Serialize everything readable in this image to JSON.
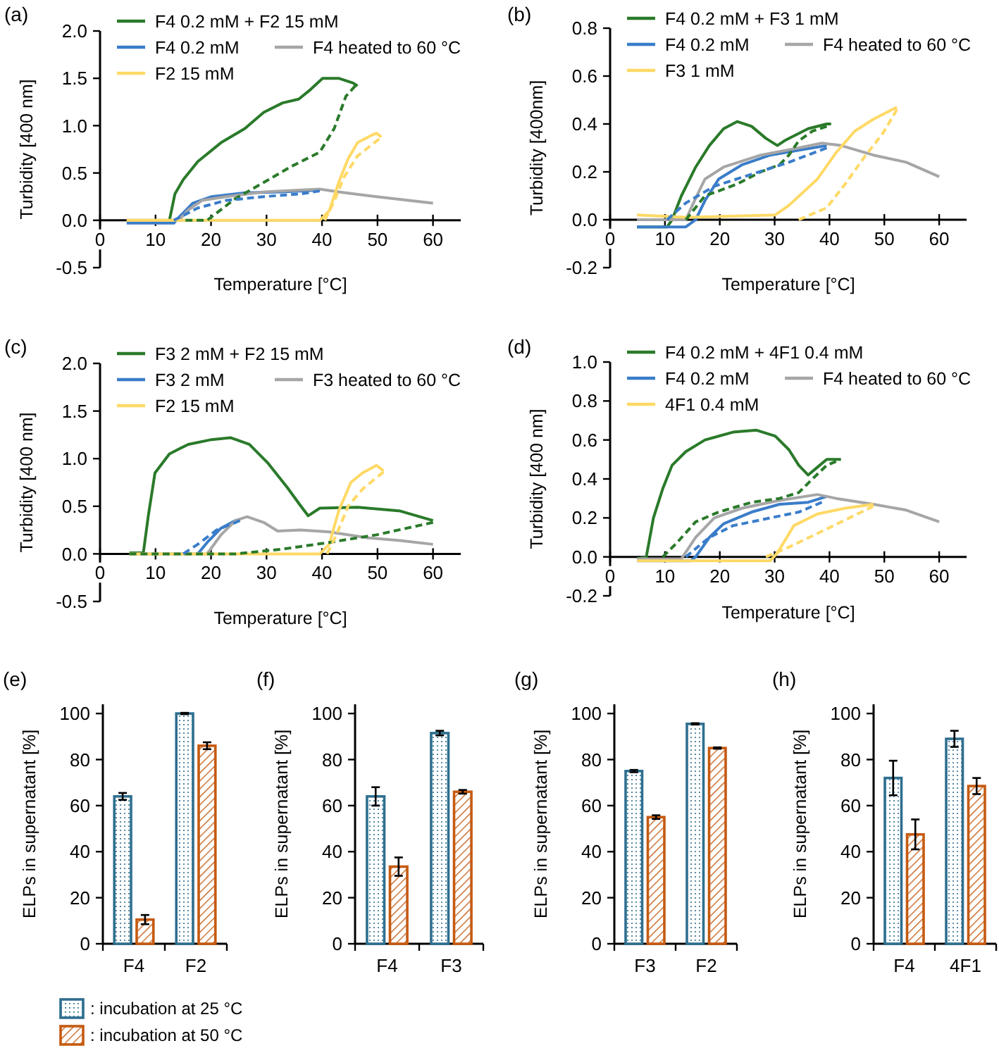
{
  "chart_data": [
    {
      "type": "line",
      "title": "(a)",
      "xlabel": "Temperature [°C]",
      "ylabel": "Turbidity [400 nm]",
      "xlim": [
        0,
        65
      ],
      "xticks": [
        0,
        10,
        20,
        30,
        40,
        50,
        60
      ],
      "ylim": [
        -0.5,
        2.0
      ],
      "yticks": [
        -0.5,
        {
          "value": 0,
          "label": "0.0"
        },
        0.5,
        {
          "value": 1,
          "label": "1.0"
        },
        1.5,
        {
          "value": 2,
          "label": "2.0"
        }
      ],
      "legend": "top",
      "series": [
        {
          "name": "F4 0.2 mM + F2 15 mM",
          "color": "#2a7a2a",
          "line_style": "solid",
          "x": [
            12.5,
            13.5,
            15,
            17.6,
            21.8,
            26.1,
            29.5,
            32.9,
            35.8,
            37.9,
            40.1,
            43,
            45.6,
            46.4
          ],
          "values": [
            0,
            0.28,
            0.43,
            0.62,
            0.82,
            0.97,
            1.14,
            1.24,
            1.28,
            1.38,
            1.5,
            1.5,
            1.45,
            1.42
          ]
        },
        {
          "color": "#2a7a2a",
          "line_style": "dashed",
          "x": [
            15.4,
            19.3,
            24.4,
            29.5,
            34.5,
            39.6,
            42.2,
            44.3,
            46
          ],
          "values": [
            0,
            0,
            0.23,
            0.4,
            0.57,
            0.72,
            0.97,
            1.31,
            1.42
          ]
        },
        {
          "name": "F4 0.2 mM",
          "color": "#3a7dc9",
          "line_style": "solid",
          "x": [
            4.8,
            13.3,
            14.2,
            16.7,
            20.1,
            26.1,
            32.9,
            39.6
          ],
          "values": [
            -0.03,
            -0.03,
            0.03,
            0.18,
            0.25,
            0.29,
            0.3,
            0.32
          ]
        },
        {
          "color": "#3a7dc9",
          "line_style": "dashed",
          "x": [
            13.3,
            17.6,
            22.7,
            29.5,
            36.2,
            39.6
          ],
          "values": [
            0,
            0.13,
            0.21,
            0.25,
            0.28,
            0.31
          ]
        },
        {
          "name": "F4 heated to 60 °C",
          "color": "#a6a6a6",
          "line_style": "solid",
          "x": [
            4.8,
            14.2,
            15.9,
            18.4,
            22.7,
            29.5,
            39.6,
            43,
            49.8,
            60
          ],
          "values": [
            0,
            0,
            0.11,
            0.21,
            0.25,
            0.3,
            0.33,
            0.3,
            0.25,
            0.18
          ]
        },
        {
          "name": "F2 15 mM",
          "color": "#ffd966",
          "line_style": "solid",
          "x": [
            4.8,
            39.6,
            41.3,
            43,
            44.7,
            46.4,
            49,
            49.8,
            50.7
          ],
          "values": [
            0,
            0,
            0.1,
            0.4,
            0.65,
            0.82,
            0.9,
            0.92,
            0.88
          ]
        },
        {
          "color": "#ffd966",
          "line_style": "dashed",
          "x": [
            40.5,
            42.2,
            43.9,
            46.4,
            49,
            50.3
          ],
          "values": [
            0,
            0.2,
            0.45,
            0.68,
            0.8,
            0.86
          ]
        }
      ]
    },
    {
      "type": "line",
      "title": "(b)",
      "xlabel": "Temperature [°C]",
      "ylabel": "Turbidity [400nm]",
      "xlim": [
        0,
        65
      ],
      "xticks": [
        0,
        10,
        20,
        30,
        40,
        50,
        60
      ],
      "ylim": [
        -0.2,
        0.8
      ],
      "yticks": [
        -0.2,
        {
          "value": 0,
          "label": "0.0"
        },
        0.2,
        0.4,
        0.6,
        0.8
      ],
      "legend": "top",
      "series": [
        {
          "name": "F4 0.2 mM + F3 1 mM",
          "color": "#2a7a2a",
          "line_style": "solid",
          "x": [
            4.9,
            10.4,
            11.3,
            13,
            15.6,
            18.1,
            20.7,
            23.2,
            25.8,
            28.4,
            30.5,
            31.8,
            33.5,
            36.1,
            39.5,
            40.3
          ],
          "values": [
            -0.03,
            -0.03,
            0,
            0.1,
            0.22,
            0.31,
            0.38,
            0.41,
            0.39,
            0.34,
            0.31,
            0.33,
            0.35,
            0.38,
            0.4,
            0.4
          ]
        },
        {
          "color": "#2a7a2a",
          "line_style": "dashed",
          "x": [
            13.8,
            17.3,
            19.8,
            23.2,
            27.5,
            30.9,
            32.6,
            34.4,
            36.9,
            39.5
          ],
          "values": [
            0,
            0.1,
            0.12,
            0.15,
            0.2,
            0.23,
            0.27,
            0.33,
            0.37,
            0.39
          ]
        },
        {
          "name": "F4 0.2 mM",
          "color": "#3a7dc9",
          "line_style": "solid",
          "x": [
            4.9,
            13.8,
            15.6,
            17.3,
            19.8,
            24.1,
            29.2,
            34.4,
            39.5
          ],
          "values": [
            -0.03,
            -0.03,
            0,
            0.08,
            0.17,
            0.23,
            0.27,
            0.29,
            0.31
          ]
        },
        {
          "color": "#3a7dc9",
          "line_style": "dashed",
          "x": [
            10.4,
            13.8,
            19,
            25.8,
            32.6,
            39.5
          ],
          "values": [
            0,
            0.07,
            0.14,
            0.19,
            0.24,
            0.3
          ]
        },
        {
          "name": "F4 heated to 60 °C",
          "color": "#a6a6a6",
          "line_style": "solid",
          "x": [
            4.9,
            13.8,
            15.6,
            17.3,
            20.7,
            27.5,
            34.4,
            38.6,
            42.1,
            48,
            54,
            60
          ],
          "values": [
            0,
            0,
            0.09,
            0.17,
            0.22,
            0.27,
            0.3,
            0.32,
            0.31,
            0.27,
            0.24,
            0.18
          ]
        },
        {
          "name": "F3 1 mM",
          "color": "#ffd966",
          "line_style": "solid",
          "x": [
            4.9,
            13.8,
            30.1,
            32.6,
            37.8,
            41.2,
            44.6,
            48,
            52.3
          ],
          "values": [
            0.02,
            0.01,
            0.02,
            0.06,
            0.17,
            0.28,
            0.37,
            0.42,
            0.47
          ]
        },
        {
          "color": "#ffd966",
          "line_style": "dashed",
          "x": [
            34.4,
            39.5,
            42.9,
            46.3,
            49.7,
            52.3
          ],
          "values": [
            0,
            0.05,
            0.15,
            0.26,
            0.36,
            0.46
          ]
        }
      ]
    },
    {
      "type": "line",
      "title": "(c)",
      "xlabel": "Temperature [°C]",
      "ylabel": "Turbidity [400 nm]",
      "xlim": [
        0,
        65
      ],
      "xticks": [
        0,
        10,
        20,
        30,
        40,
        50,
        60
      ],
      "ylim": [
        -0.5,
        2.0
      ],
      "yticks": [
        -0.5,
        {
          "value": 0,
          "label": "0.0"
        },
        0.5,
        {
          "value": 1,
          "label": "1.0"
        },
        1.5,
        {
          "value": 2,
          "label": "2.0"
        }
      ],
      "legend": "top",
      "series": [
        {
          "name": "F3 2 mM + F2 15 mM",
          "color": "#2a7a2a",
          "line_style": "solid",
          "x": [
            5.3,
            7.8,
            8.7,
            9.9,
            12.5,
            15.9,
            20.1,
            23.5,
            26.9,
            30.3,
            33.7,
            36.2,
            37.5,
            39.6,
            46.4,
            54.1,
            60
          ],
          "values": [
            0.01,
            0.01,
            0.4,
            0.85,
            1.05,
            1.15,
            1.2,
            1.22,
            1.15,
            0.95,
            0.7,
            0.5,
            0.4,
            0.48,
            0.49,
            0.45,
            0.35
          ]
        },
        {
          "color": "#2a7a2a",
          "line_style": "dashed",
          "x": [
            5.3,
            24.4,
            32.9,
            41.3,
            49.8,
            60
          ],
          "values": [
            0,
            0,
            0.05,
            0.12,
            0.2,
            0.33
          ]
        },
        {
          "name": "F3 2 mM",
          "color": "#3a7dc9",
          "line_style": "solid",
          "x": [
            17.6,
            19.3,
            21.8,
            24.4,
            25.2
          ],
          "values": [
            0,
            0.12,
            0.27,
            0.35,
            0.36
          ]
        },
        {
          "color": "#3a7dc9",
          "line_style": "dashed",
          "x": [
            15,
            17.6,
            21,
            24.4,
            25.2
          ],
          "values": [
            0,
            0.1,
            0.25,
            0.33,
            0.35
          ]
        },
        {
          "name": "F3 heated to 60 °C",
          "color": "#a6a6a6",
          "line_style": "solid",
          "x": [
            5.3,
            19.3,
            21.8,
            24.4,
            26.5,
            29.5,
            32,
            36.2,
            41.3,
            48.1,
            54.1,
            60
          ],
          "values": [
            0,
            0,
            0.2,
            0.35,
            0.39,
            0.33,
            0.24,
            0.25,
            0.23,
            0.17,
            0.14,
            0.1
          ]
        },
        {
          "name": "F2 15 mM",
          "color": "#ffd966",
          "line_style": "solid",
          "x": [
            5.3,
            39.6,
            41.3,
            43,
            45.2,
            47.3,
            49.8,
            51.1
          ],
          "values": [
            0,
            0,
            0.1,
            0.45,
            0.75,
            0.85,
            0.93,
            0.87
          ]
        },
        {
          "color": "#ffd966",
          "line_style": "dashed",
          "x": [
            40.9,
            42.6,
            44.7,
            47.3,
            49.8,
            51.1
          ],
          "values": [
            0,
            0.2,
            0.5,
            0.68,
            0.8,
            0.86
          ]
        }
      ]
    },
    {
      "type": "line",
      "title": "(d)",
      "xlabel": "Temperature [°C]",
      "ylabel": "Turbidity [400 nm]",
      "xlim": [
        0,
        65
      ],
      "xticks": [
        0,
        10,
        20,
        30,
        40,
        50,
        60
      ],
      "ylim": [
        -0.2,
        1.0
      ],
      "yticks": [
        -0.2,
        {
          "value": 0,
          "label": "0.0"
        },
        0.2,
        0.4,
        0.6,
        0.8,
        {
          "value": 1,
          "label": "1.0"
        }
      ],
      "legend": "top",
      "series": [
        {
          "name": "F4 0.2 mM + 4F1 0.4 mM",
          "color": "#2a7a2a",
          "line_style": "solid",
          "x": [
            4.9,
            6.6,
            7.9,
            9.6,
            11.3,
            13.8,
            17.3,
            22.4,
            26.7,
            30.1,
            32.6,
            34.4,
            36.1,
            37.8,
            39.5,
            42.1
          ],
          "values": [
            -0.01,
            0,
            0.2,
            0.35,
            0.47,
            0.54,
            0.6,
            0.64,
            0.65,
            0.62,
            0.55,
            0.47,
            0.42,
            0.46,
            0.5,
            0.5
          ]
        },
        {
          "color": "#2a7a2a",
          "line_style": "dashed",
          "x": [
            9.6,
            12.1,
            15.6,
            19.8,
            25.8,
            30.9,
            34.4,
            36.9,
            39.5,
            41.2
          ],
          "values": [
            0,
            0.07,
            0.18,
            0.23,
            0.28,
            0.3,
            0.33,
            0.4,
            0.47,
            0.49
          ]
        },
        {
          "name": "F4 0.2 mM",
          "color": "#3a7dc9",
          "line_style": "solid",
          "x": [
            4.9,
            14.7,
            15.6,
            18.1,
            20.7,
            25.8,
            30.9,
            36.1,
            39.5
          ],
          "values": [
            -0.02,
            -0.02,
            0,
            0.1,
            0.17,
            0.23,
            0.27,
            0.28,
            0.31
          ]
        },
        {
          "color": "#3a7dc9",
          "line_style": "dashed",
          "x": [
            13.8,
            18.1,
            22.4,
            27.5,
            34.4,
            38.6
          ],
          "values": [
            0,
            0.1,
            0.16,
            0.19,
            0.23,
            0.28
          ]
        },
        {
          "name": "F4 heated to 60 °C",
          "color": "#a6a6a6",
          "line_style": "solid",
          "x": [
            4.9,
            13,
            15.6,
            19,
            24.1,
            30.9,
            37.8,
            41.2,
            48,
            54,
            60
          ],
          "values": [
            -0.01,
            -0.01,
            0.1,
            0.2,
            0.25,
            0.29,
            0.32,
            0.3,
            0.27,
            0.24,
            0.18
          ]
        },
        {
          "name": "4F1 0.4 mM",
          "color": "#ffd966",
          "line_style": "solid",
          "x": [
            4.9,
            29.2,
            30.5,
            33.5,
            37.8,
            42.9,
            48
          ],
          "values": [
            -0.02,
            -0.02,
            0.02,
            0.16,
            0.22,
            0.25,
            0.27
          ]
        },
        {
          "color": "#ffd966",
          "line_style": "dashed",
          "x": [
            28.4,
            32.6,
            37.8,
            42.9,
            48
          ],
          "values": [
            0,
            0.05,
            0.12,
            0.19,
            0.26
          ]
        }
      ]
    },
    {
      "type": "bar",
      "title": "(e)",
      "ylabel": "ELPs in supernatant [%]",
      "categories": [
        "F4",
        "F2"
      ],
      "ylim": [
        0,
        104
      ],
      "yticks": [
        0,
        20,
        40,
        60,
        80,
        100
      ],
      "legend": "bottom left",
      "series": [
        {
          "name": ": incubation at 25 °C",
          "color": "#2f6f8f",
          "values": [
            64,
            100
          ],
          "errors": [
            1.5,
            0.3
          ]
        },
        {
          "name": ": incubation at 50 °C",
          "color": "#c55a11",
          "values": [
            10.5,
            86
          ],
          "errors": [
            2,
            1.5
          ]
        }
      ]
    },
    {
      "type": "bar",
      "title": "(f)",
      "ylabel": "ELPs in supernatant [%]",
      "categories": [
        "F4",
        "F3"
      ],
      "ylim": [
        0,
        104
      ],
      "yticks": [
        0,
        20,
        40,
        60,
        80,
        100
      ],
      "series": [
        {
          "color": "#2f6f8f",
          "values": [
            64,
            91.5
          ],
          "errors": [
            4,
            1
          ]
        },
        {
          "color": "#c55a11",
          "values": [
            33.5,
            66
          ],
          "errors": [
            4,
            0.8
          ]
        }
      ]
    },
    {
      "type": "bar",
      "title": "(g)",
      "ylabel": "ELPs in supernatant [%]",
      "categories": [
        "F3",
        "F2"
      ],
      "ylim": [
        0,
        104
      ],
      "yticks": [
        0,
        20,
        40,
        60,
        80,
        100
      ],
      "series": [
        {
          "color": "#2f6f8f",
          "values": [
            75,
            95.5
          ],
          "errors": [
            0.5,
            0.3
          ]
        },
        {
          "color": "#c55a11",
          "values": [
            55,
            85
          ],
          "errors": [
            0.8,
            0.3
          ]
        }
      ]
    },
    {
      "type": "bar",
      "title": "(h)",
      "ylabel": "ELPs in supernatant [%]",
      "categories": [
        "F4",
        "4F1"
      ],
      "ylim": [
        0,
        104
      ],
      "yticks": [
        0,
        20,
        40,
        60,
        80,
        100
      ],
      "series": [
        {
          "color": "#2f6f8f",
          "values": [
            72,
            89
          ],
          "errors": [
            7.5,
            3.5
          ]
        },
        {
          "color": "#c55a11",
          "values": [
            47.5,
            68.5
          ],
          "errors": [
            6.5,
            3.5
          ]
        }
      ]
    }
  ]
}
